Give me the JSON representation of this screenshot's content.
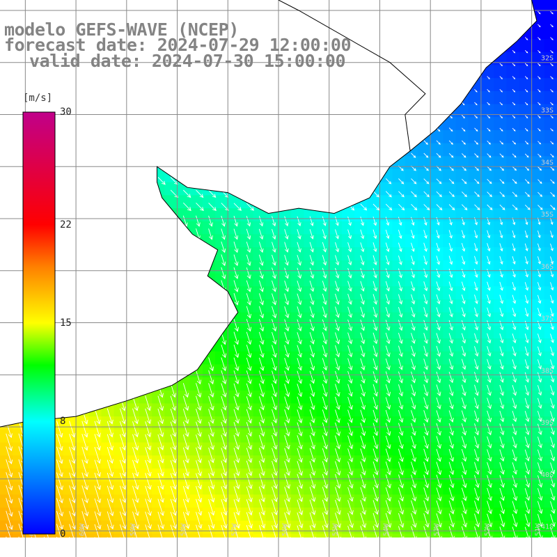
{
  "title": {
    "line1": "modelo GEFS-WAVE (NCEP)",
    "line2": "forecast date: 2024-07-29 12:00:00",
    "line3": "valid date: 2024-07-30 15:00:00"
  },
  "colorbar": {
    "unit": "[m/s]",
    "ticks": [
      {
        "value": 30,
        "label": "30"
      },
      {
        "value": 22,
        "label": "22"
      },
      {
        "value": 15,
        "label": "15"
      },
      {
        "value": 8,
        "label": "8"
      },
      {
        "value": 0,
        "label": "0"
      }
    ],
    "vmin": 0,
    "vmax": 30,
    "stops": [
      "#0000ff",
      "#0080ff",
      "#00ffff",
      "#00ff00",
      "#ffff00",
      "#ff8000",
      "#ff0000",
      "#c0008a"
    ]
  },
  "map": {
    "lon_range": [
      -61.5,
      -50.5
    ],
    "lat_range": [
      -41.5,
      -30.8
    ],
    "gridline_lons": [
      -61,
      -60,
      -59,
      -58,
      -57,
      -56,
      -55,
      -54,
      -53,
      -52,
      -51
    ],
    "gridline_lats": [
      -31,
      -32,
      -33,
      -34,
      -35,
      -36,
      -37,
      -38,
      -39,
      -40,
      -41
    ],
    "lat_labels": [
      "32S",
      "33S",
      "34S",
      "35S",
      "36S",
      "37S",
      "38S",
      "39S",
      "40S",
      "41S"
    ],
    "lon_labels": [
      "61W",
      "60W",
      "59W",
      "58W",
      "57W",
      "56W",
      "55W",
      "54W",
      "53W",
      "52W",
      "51W"
    ],
    "land_color": "#ffffff",
    "grid_color": "#888888",
    "coast_color": "#000000",
    "arrow_color": "#ffffff"
  }
}
